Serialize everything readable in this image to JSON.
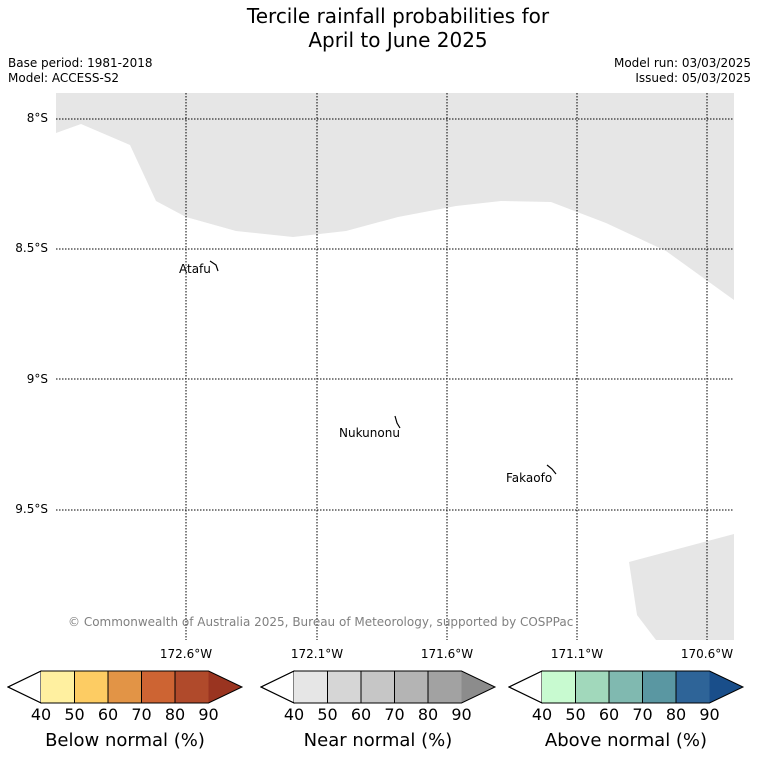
{
  "title": {
    "line1": "Tercile rainfall probabilities for",
    "line2": "April to June 2025"
  },
  "info": {
    "base_period": "Base period: 1981-2018",
    "model": "Model: ACCESS-S2",
    "model_run": "Model run: 03/03/2025",
    "issued": "Issued: 05/03/2025"
  },
  "map": {
    "lat_labels": [
      "8°S",
      "8.5°S",
      "9°S",
      "9.5°S"
    ],
    "lon_labels": [
      "172.6°W",
      "172.1°W",
      "171.6°W",
      "171.1°W",
      "170.6°W"
    ],
    "places": {
      "atafu": "Atafu",
      "nukunonu": "Nukunonu",
      "fakaofo": "Fakaofo"
    },
    "copyright": "© Commonwealth of Australia 2025, Bureau of Meteorology, supported by COSPPac",
    "colors": {
      "no_data": "#e6e6e6",
      "background": "#ffffff"
    }
  },
  "legend": {
    "ticks": [
      "40",
      "50",
      "60",
      "70",
      "80",
      "90"
    ],
    "below": {
      "title": "Below normal (%)",
      "colors": [
        "#ffffff",
        "#fff0a0",
        "#fdcc63",
        "#e29446",
        "#cd6433",
        "#b04a2b",
        "#9a3420"
      ]
    },
    "near": {
      "title": "Near normal (%)",
      "colors": [
        "#ffffff",
        "#e6e6e6",
        "#d6d6d6",
        "#c6c6c6",
        "#b4b4b4",
        "#a2a2a2",
        "#8c8c8c"
      ]
    },
    "above": {
      "title": "Above normal (%)",
      "colors": [
        "#ffffff",
        "#c8fad0",
        "#a1d8bb",
        "#80b9b0",
        "#5a97a2",
        "#2e6498",
        "#194e8a"
      ]
    }
  }
}
